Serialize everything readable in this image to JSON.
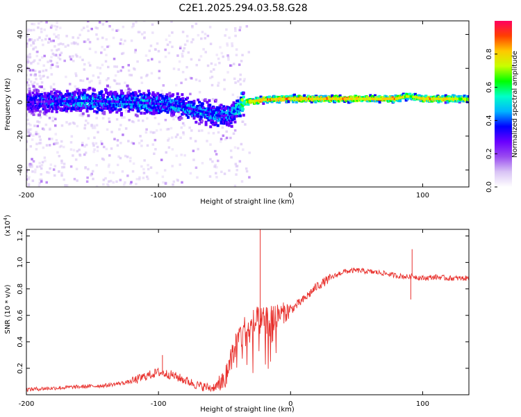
{
  "title": "C2E1.2025.294.03.58.G28",
  "colors": {
    "snr_line": "#e8302c",
    "colormap": [
      "#ffffff",
      "#d9c4f5",
      "#9a4cf0",
      "#6a00ff",
      "#0000ff",
      "#00b4ff",
      "#00ffc8",
      "#00ff00",
      "#c8ff00",
      "#ffc800",
      "#ff4000",
      "#ff0060"
    ]
  },
  "chart_data": [
    {
      "type": "heatmap",
      "name": "spectrogram",
      "xlabel": "Height of straight line (km)",
      "ylabel": "Frequency (Hz)",
      "xlim": [
        -200,
        135
      ],
      "ylim": [
        -50,
        48
      ],
      "xticks": [
        -200,
        -100,
        0,
        100
      ],
      "yticks": [
        -40,
        -20,
        0,
        20,
        40
      ],
      "colorbar": {
        "label": "Normalized spectral amplitude",
        "range": [
          0,
          1
        ],
        "ticks": [
          0.0,
          0.2,
          0.4,
          0.6,
          0.8
        ]
      },
      "ridge": {
        "x": [
          -200,
          -180,
          -160,
          -140,
          -120,
          -100,
          -90,
          -80,
          -70,
          -60,
          -55,
          -50,
          -45,
          -42,
          -40,
          -38,
          -35,
          -30,
          -25,
          -20,
          -10,
          0,
          20,
          40,
          60,
          80,
          85,
          90,
          95,
          100,
          110,
          120,
          135
        ],
        "y": [
          0,
          0.5,
          0.8,
          0.5,
          0,
          -1,
          -1.5,
          -3,
          -5,
          -7,
          -8,
          -8,
          -7,
          -5,
          -4,
          -2,
          0,
          0.5,
          1,
          1.5,
          1.8,
          2,
          2,
          2,
          2,
          2,
          3,
          3.5,
          3,
          2,
          2,
          2,
          2
        ],
        "amplitude": [
          0.25,
          0.3,
          0.35,
          0.35,
          0.35,
          0.35,
          0.35,
          0.35,
          0.35,
          0.35,
          0.35,
          0.35,
          0.35,
          0.4,
          0.45,
          0.5,
          0.6,
          0.75,
          0.8,
          0.8,
          0.8,
          0.8,
          0.8,
          0.8,
          0.8,
          0.8,
          0.75,
          0.7,
          0.75,
          0.8,
          0.8,
          0.75,
          0.7
        ]
      }
    },
    {
      "type": "line",
      "name": "snr",
      "xlabel": "Height of straight line (km)",
      "ylabel": "SNR (10 * v/v)",
      "scale_label": "(x10",
      "scale_exponent": "4",
      "scale_suffix": ")",
      "xlim": [
        -200,
        135
      ],
      "ylim": [
        0,
        1.25
      ],
      "xticks": [
        -200,
        -100,
        0,
        100
      ],
      "yticks": [
        0.2,
        0.4,
        0.6,
        0.8,
        1.0,
        1.2
      ],
      "series": [
        {
          "name": "SNR",
          "x": [
            -200,
            -180,
            -160,
            -140,
            -120,
            -110,
            -100,
            -90,
            -80,
            -70,
            -60,
            -50,
            -45,
            -40,
            -35,
            -30,
            -25,
            -20,
            -15,
            -10,
            -5,
            0,
            10,
            20,
            30,
            40,
            50,
            60,
            70,
            80,
            90,
            92,
            95,
            100,
            110,
            120,
            135
          ],
          "y": [
            0.04,
            0.05,
            0.06,
            0.07,
            0.1,
            0.14,
            0.17,
            0.15,
            0.11,
            0.07,
            0.05,
            0.1,
            0.3,
            0.42,
            0.48,
            0.52,
            0.55,
            0.55,
            0.58,
            0.6,
            0.62,
            0.64,
            0.72,
            0.82,
            0.88,
            0.93,
            0.94,
            0.93,
            0.92,
            0.9,
            0.89,
            0.9,
            0.89,
            0.88,
            0.89,
            0.88,
            0.88
          ]
        }
      ],
      "spikes": [
        {
          "x": -23,
          "y": 1.25
        },
        {
          "x": 92,
          "y": 1.1
        },
        {
          "x": 91,
          "y": 0.72
        },
        {
          "x": -97,
          "y": 0.3
        }
      ]
    }
  ]
}
